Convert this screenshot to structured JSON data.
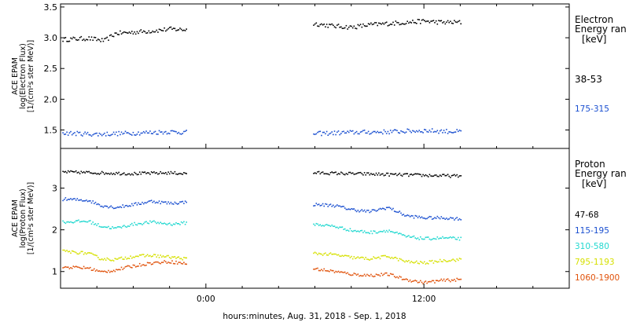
{
  "xaxis": {
    "label": "hours:minutes, Aug. 31, 2018 - Sep.  1, 2018",
    "ticks": [
      {
        "t": 0,
        "label": "0:00"
      },
      {
        "t": 12,
        "label": "12:00"
      }
    ],
    "range_hours": [
      -8,
      20
    ]
  },
  "chart_data": [
    {
      "type": "scatter",
      "ylabel": [
        "ACE EPAM",
        "log(Electron Flux)",
        "[1/(cm²s ster MeV)]"
      ],
      "ylim": [
        1.2,
        3.55
      ],
      "yticks": [
        "1.5",
        "2.0",
        "2.5",
        "3.0",
        "3.5"
      ],
      "legend": {
        "title": [
          "Electron",
          "Energy ran",
          "[keV]"
        ],
        "entries": [
          {
            "label": "38-53",
            "color": "#000000"
          },
          {
            "label": "175-315",
            "color": "#1a4fd0"
          }
        ]
      },
      "series": [
        {
          "label": "38-53",
          "color": "#000000",
          "segments": [
            {
              "t": [
                -7.9,
                -6.5,
                -5.6,
                -5.0,
                -4.0,
                -3.0,
                -2.0,
                -1.1
              ],
              "v": [
                2.98,
                3.0,
                2.96,
                3.08,
                3.1,
                3.12,
                3.15,
                3.14
              ]
            },
            {
              "t": [
                5.9,
                7.0,
                8.0,
                9.0,
                10.0,
                11.0,
                12.0,
                13.0,
                14.0
              ],
              "v": [
                3.24,
                3.2,
                3.18,
                3.22,
                3.24,
                3.26,
                3.28,
                3.26,
                3.26
              ]
            }
          ]
        },
        {
          "label": "175-315",
          "color": "#1a4fd0",
          "segments": [
            {
              "t": [
                -7.9,
                -6.0,
                -4.0,
                -2.0,
                -1.1
              ],
              "v": [
                1.46,
                1.44,
                1.46,
                1.48,
                1.47
              ]
            },
            {
              "t": [
                5.9,
                8.0,
                10.0,
                12.0,
                14.0
              ],
              "v": [
                1.45,
                1.47,
                1.48,
                1.5,
                1.48
              ]
            }
          ]
        }
      ]
    },
    {
      "type": "scatter",
      "ylabel": [
        "ACE EPAM",
        "log(Proton Flux)",
        "[1/(cm²s ster MeV)]"
      ],
      "ylim": [
        0.6,
        3.95
      ],
      "yticks": [
        "1",
        "2",
        "3"
      ],
      "legend": {
        "title": [
          "Proton",
          "Energy ran",
          "[keV]"
        ],
        "entries": [
          {
            "label": "47-68",
            "color": "#000000"
          },
          {
            "label": "115-195",
            "color": "#1a4fd0"
          },
          {
            "label": "310-580",
            "color": "#22d8d0"
          },
          {
            "label": "795-1193",
            "color": "#d6e000"
          },
          {
            "label": "1060-1900",
            "color": "#e0520a"
          }
        ]
      },
      "series": [
        {
          "label": "47-68",
          "color": "#000000",
          "segments": [
            {
              "t": [
                -7.9,
                -6.0,
                -4.0,
                -2.0,
                -1.1
              ],
              "v": [
                3.4,
                3.38,
                3.36,
                3.38,
                3.36
              ]
            },
            {
              "t": [
                5.9,
                8.0,
                10.0,
                12.0,
                14.0
              ],
              "v": [
                3.38,
                3.36,
                3.34,
                3.32,
                3.3
              ]
            }
          ]
        },
        {
          "label": "115-195",
          "color": "#1a4fd0",
          "segments": [
            {
              "t": [
                -7.9,
                -6.5,
                -5.8,
                -5.0,
                -4.0,
                -3.0,
                -2.0,
                -1.1
              ],
              "v": [
                2.75,
                2.72,
                2.6,
                2.55,
                2.62,
                2.7,
                2.65,
                2.68
              ]
            },
            {
              "t": [
                5.9,
                7.0,
                8.0,
                9.0,
                10.0,
                11.0,
                12.0,
                13.0,
                14.0
              ],
              "v": [
                2.62,
                2.6,
                2.5,
                2.45,
                2.55,
                2.35,
                2.3,
                2.3,
                2.28
              ]
            }
          ]
        },
        {
          "label": "310-580",
          "color": "#22d8d0",
          "segments": [
            {
              "t": [
                -7.9,
                -6.5,
                -5.8,
                -5.0,
                -4.0,
                -3.0,
                -2.0,
                -1.1
              ],
              "v": [
                2.2,
                2.22,
                2.1,
                2.05,
                2.15,
                2.2,
                2.15,
                2.18
              ]
            },
            {
              "t": [
                5.9,
                7.0,
                8.0,
                9.0,
                10.0,
                11.0,
                12.0,
                13.0,
                14.0
              ],
              "v": [
                2.15,
                2.1,
                2.0,
                1.95,
                2.0,
                1.85,
                1.8,
                1.82,
                1.8
              ]
            }
          ]
        },
        {
          "label": "795-1193",
          "color": "#d6e000",
          "segments": [
            {
              "t": [
                -7.9,
                -6.5,
                -5.8,
                -5.0,
                -4.0,
                -3.0,
                -2.0,
                -1.1
              ],
              "v": [
                1.5,
                1.45,
                1.32,
                1.3,
                1.38,
                1.4,
                1.36,
                1.32
              ]
            },
            {
              "t": [
                5.9,
                7.0,
                8.0,
                9.0,
                10.0,
                11.0,
                12.0,
                13.0,
                14.0
              ],
              "v": [
                1.45,
                1.42,
                1.35,
                1.32,
                1.38,
                1.25,
                1.22,
                1.28,
                1.3
              ]
            }
          ]
        },
        {
          "label": "1060-1900",
          "color": "#e0520a",
          "segments": [
            {
              "t": [
                -7.9,
                -6.5,
                -5.8,
                -5.0,
                -4.0,
                -3.0,
                -2.0,
                -1.1
              ],
              "v": [
                1.12,
                1.1,
                1.0,
                1.05,
                1.15,
                1.22,
                1.25,
                1.2
              ]
            },
            {
              "t": [
                5.9,
                7.0,
                8.0,
                9.0,
                10.0,
                11.0,
                12.0,
                13.0,
                14.0
              ],
              "v": [
                1.08,
                1.02,
                0.95,
                0.92,
                0.95,
                0.82,
                0.75,
                0.8,
                0.82
              ]
            }
          ]
        }
      ]
    }
  ]
}
